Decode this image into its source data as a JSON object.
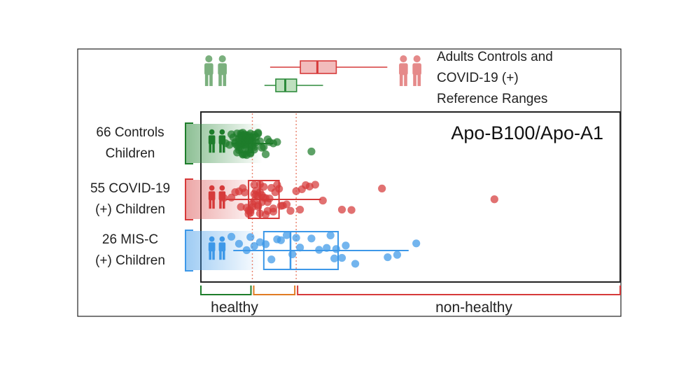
{
  "chart_data": {
    "type": "scatter",
    "title": "Apo-B100/Apo-A1",
    "xlabel": "",
    "ylabel": "",
    "xlim": [
      0,
      2.2
    ],
    "thresholds": [
      0.27,
      0.5
    ],
    "legend": {
      "text_lines": [
        "Adults Controls and",
        "COVID-19 (+)",
        "Reference Ranges"
      ],
      "controls_range": {
        "whisker_low": 0.14,
        "q1": 0.2,
        "median": 0.25,
        "q3": 0.31,
        "whisker_high": 0.45
      },
      "covid_range": {
        "whisker_low": 0.17,
        "q1": 0.33,
        "median": 0.42,
        "q3": 0.52,
        "whisker_high": 0.79
      }
    },
    "series": [
      {
        "name": "66 Controls Children",
        "label_lines": [
          "66 Controls",
          "Children"
        ],
        "color": "#1e7d2b",
        "box": {
          "whisker_low": 0.16,
          "q1": 0.2,
          "median": 0.25,
          "q3": 0.27,
          "whisker_high": 0.38
        },
        "points": [
          0.13,
          0.15,
          0.16,
          0.17,
          0.18,
          0.18,
          0.19,
          0.19,
          0.19,
          0.2,
          0.2,
          0.2,
          0.2,
          0.21,
          0.21,
          0.21,
          0.21,
          0.21,
          0.22,
          0.22,
          0.22,
          0.22,
          0.22,
          0.22,
          0.23,
          0.23,
          0.23,
          0.23,
          0.23,
          0.23,
          0.24,
          0.24,
          0.24,
          0.24,
          0.24,
          0.24,
          0.25,
          0.25,
          0.25,
          0.25,
          0.25,
          0.26,
          0.26,
          0.26,
          0.26,
          0.26,
          0.27,
          0.27,
          0.27,
          0.27,
          0.28,
          0.28,
          0.28,
          0.29,
          0.29,
          0.3,
          0.3,
          0.31,
          0.32,
          0.33,
          0.34,
          0.35,
          0.36,
          0.38,
          0.4,
          0.58
        ]
      },
      {
        "name": "55 COVID-19 (+) Children",
        "label_lines": [
          "55 COVID-19",
          "(+) Children"
        ],
        "color": "#d63a3a",
        "box": {
          "whisker_low": 0.13,
          "q1": 0.25,
          "median": 0.31,
          "q3": 0.41,
          "whisker_high": 0.63
        },
        "points": [
          0.12,
          0.16,
          0.18,
          0.2,
          0.21,
          0.22,
          0.23,
          0.24,
          0.25,
          0.25,
          0.26,
          0.26,
          0.27,
          0.27,
          0.28,
          0.28,
          0.28,
          0.29,
          0.29,
          0.3,
          0.3,
          0.3,
          0.31,
          0.31,
          0.31,
          0.32,
          0.32,
          0.33,
          0.33,
          0.34,
          0.34,
          0.35,
          0.35,
          0.36,
          0.37,
          0.38,
          0.38,
          0.39,
          0.4,
          0.41,
          0.42,
          0.43,
          0.45,
          0.47,
          0.5,
          0.52,
          0.53,
          0.55,
          0.57,
          0.6,
          0.64,
          0.74,
          0.79,
          0.95,
          1.54
        ]
      },
      {
        "name": "26 MIS-C (+) Children",
        "label_lines": [
          "26 MIS-C",
          "(+) Children"
        ],
        "color": "#3d98e8",
        "box": {
          "whisker_low": 0.17,
          "q1": 0.33,
          "median": 0.47,
          "q3": 0.72,
          "whisker_high": 1.09
        },
        "points": [
          0.16,
          0.2,
          0.24,
          0.26,
          0.28,
          0.31,
          0.34,
          0.37,
          0.4,
          0.42,
          0.45,
          0.48,
          0.5,
          0.52,
          0.58,
          0.62,
          0.66,
          0.68,
          0.7,
          0.71,
          0.74,
          0.76,
          0.81,
          0.98,
          1.03,
          1.13
        ]
      }
    ],
    "axis_categories": [
      {
        "label": "healthy",
        "color": "#1e7d2b"
      },
      {
        "label": "",
        "color": "#e07b23"
      },
      {
        "label": "non-healthy",
        "color": "#d63a3a"
      }
    ]
  }
}
